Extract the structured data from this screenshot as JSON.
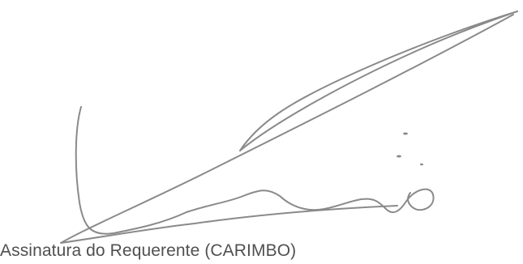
{
  "document": {
    "signature_caption": "Assinatura do Requerente (CARIMBO)",
    "signature_image": "handwritten-signature"
  }
}
